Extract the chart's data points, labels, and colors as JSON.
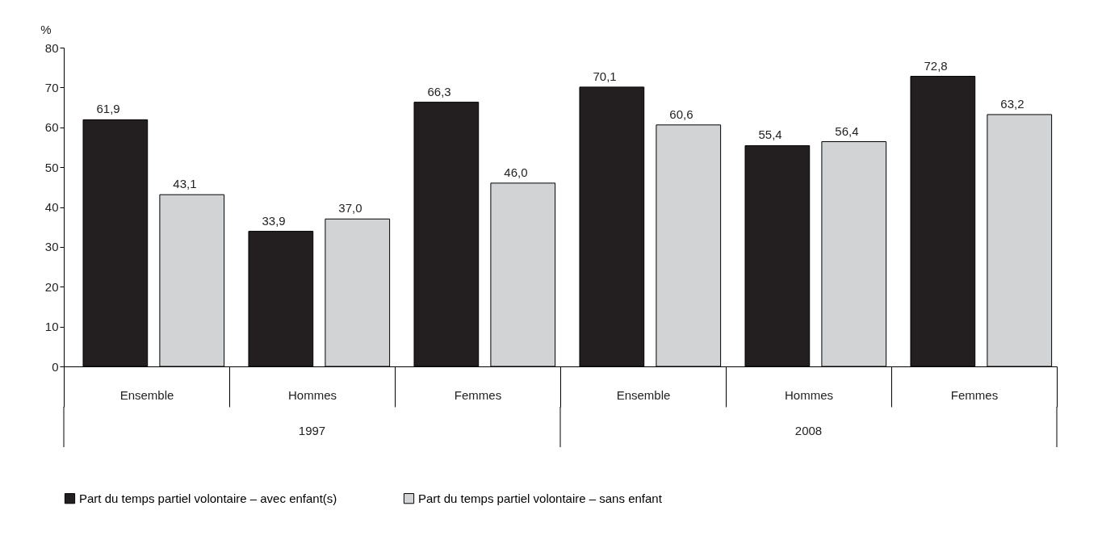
{
  "chart_data": {
    "type": "bar",
    "ylabel": "%",
    "categories": [
      "Ensemble",
      "Hommes",
      "Femmes",
      "Ensemble",
      "Hommes",
      "Femmes"
    ],
    "series": [
      {
        "name": "Part du temps partiel volontaire – avec enfant(s)",
        "color": "#231f20",
        "values": [
          61.9,
          33.9,
          66.3,
          70.1,
          55.4,
          72.8
        ],
        "value_labels": [
          "61,9",
          "33,9",
          "66,3",
          "70,1",
          "55,4",
          "72,8"
        ]
      },
      {
        "name": "Part du temps partiel volontaire – sans enfant",
        "color": "#d1d3d4",
        "values": [
          43.1,
          37.0,
          46.0,
          60.6,
          56.4,
          63.2
        ],
        "value_labels": [
          "43,1",
          "37,0",
          "46,0",
          "60,6",
          "56,4",
          "63,2"
        ]
      }
    ],
    "annotations": [
      "1997",
      "2008"
    ],
    "ylim": [
      0,
      80
    ],
    "yticks": [
      0,
      10,
      20,
      30,
      40,
      50,
      60,
      70,
      80
    ],
    "grid": false,
    "legend": "bottom"
  }
}
